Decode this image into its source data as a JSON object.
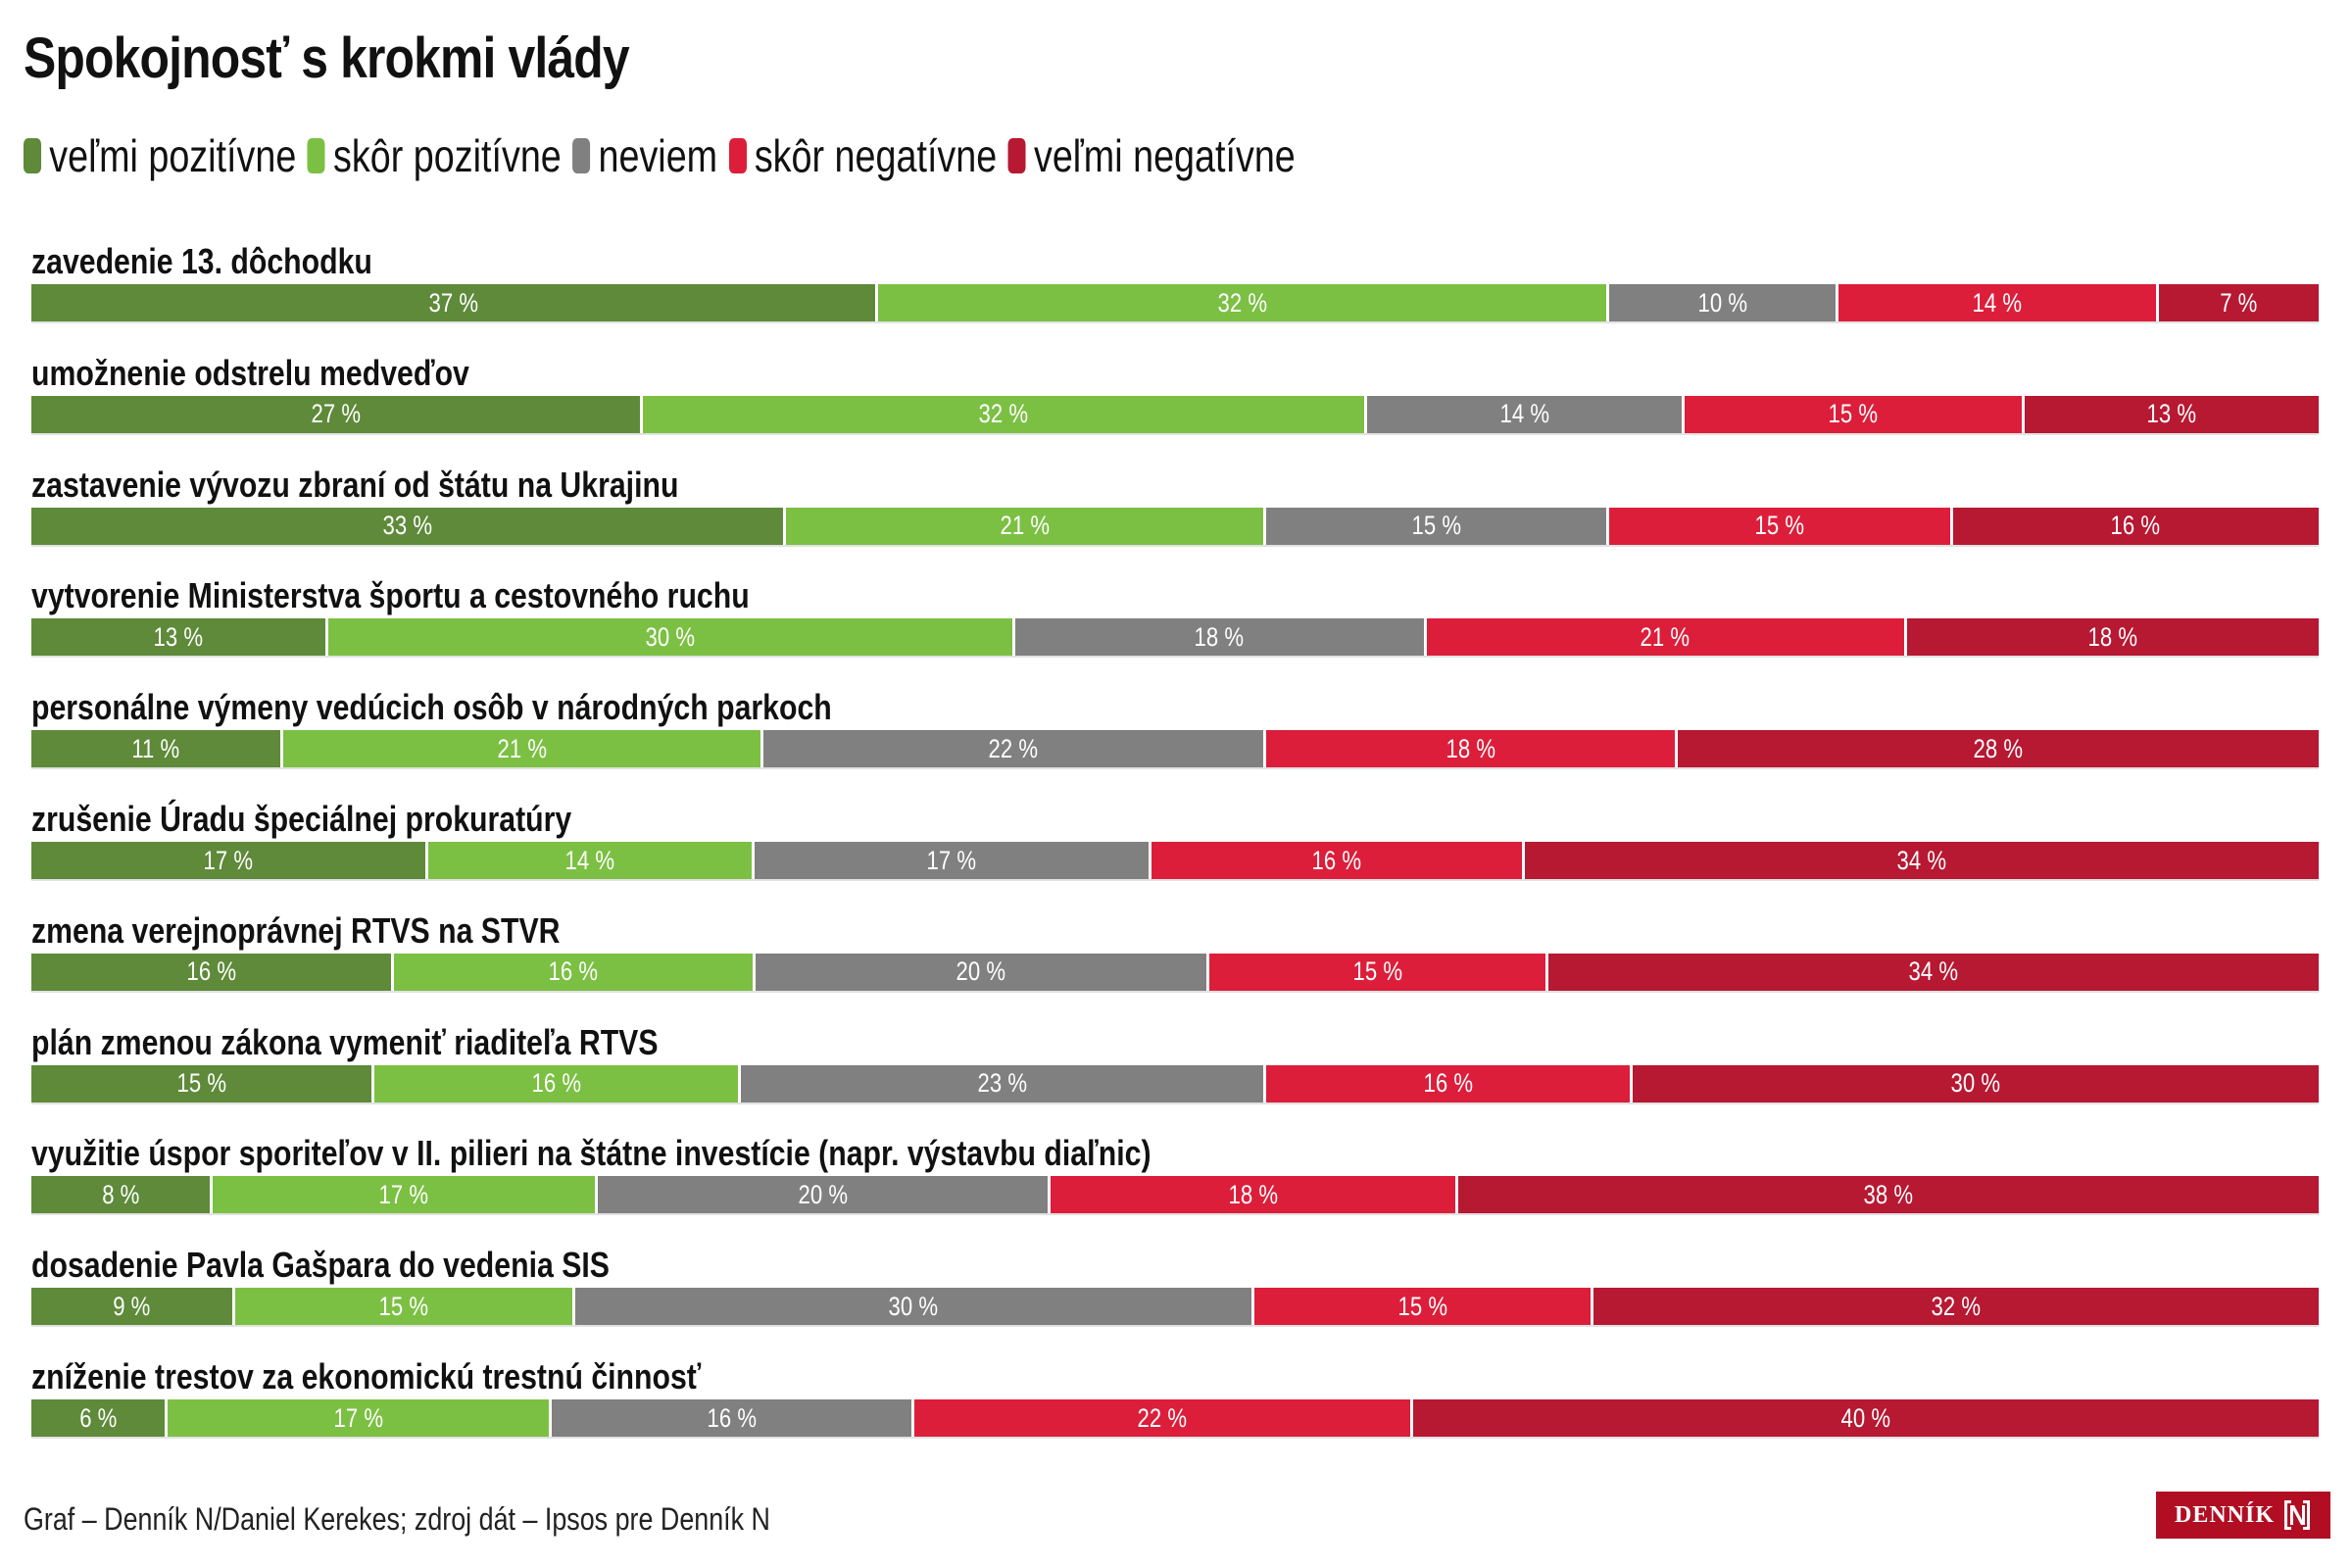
{
  "title": "Spokojnosť s krokmi vlády",
  "legend": [
    {
      "label": "veľmi pozitívne",
      "color": "#5e8a3a"
    },
    {
      "label": "skôr pozitívne",
      "color": "#7bc043"
    },
    {
      "label": "neviem",
      "color": "#808080"
    },
    {
      "label": "skôr negatívne",
      "color": "#dc1e3a"
    },
    {
      "label": "veľmi negatívne",
      "color": "#b71832"
    }
  ],
  "footer": "Graf – Denník N/Daniel Kerekes; zdroj dát – Ipsos pre Denník N",
  "logo": {
    "text": "DENNÍK",
    "icon": "n-logo-icon"
  },
  "chart_data": {
    "type": "bar",
    "orientation": "horizontal",
    "stacked": true,
    "normalized": true,
    "title": "Spokojnosť s krokmi vlády",
    "xlabel": "",
    "ylabel": "",
    "value_suffix": " %",
    "legend_position": "top-left",
    "grid": false,
    "categories": [
      "zavedenie 13. dôchodku",
      "umožnenie odstrelu medveďov",
      "zastavenie vývozu zbraní od štátu na Ukrajinu",
      "vytvorenie Ministerstva športu a cestovného ruchu",
      "personálne výmeny vedúcich osôb v národných parkoch",
      "zrušenie Úradu špeciálnej prokuratúry",
      "zmena verejnoprávnej RTVS na STVR",
      "plán zmenou zákona vymeniť riaditeľa RTVS",
      "využitie úspor sporiteľov v II. pilieri na štátne investície (napr. výstavbu diaľnic)",
      "dosadenie Pavla Gašpara do vedenia SIS",
      "zníženie trestov za ekonomickú trestnú činnosť"
    ],
    "series": [
      {
        "name": "veľmi pozitívne",
        "color": "#5e8a3a",
        "values": [
          37,
          27,
          33,
          13,
          11,
          17,
          16,
          15,
          8,
          9,
          6
        ]
      },
      {
        "name": "skôr pozitívne",
        "color": "#7bc043",
        "values": [
          32,
          32,
          21,
          30,
          21,
          14,
          16,
          16,
          17,
          15,
          17
        ]
      },
      {
        "name": "neviem",
        "color": "#808080",
        "values": [
          10,
          14,
          15,
          18,
          22,
          17,
          20,
          23,
          20,
          30,
          16
        ]
      },
      {
        "name": "skôr negatívne",
        "color": "#dc1e3a",
        "values": [
          14,
          15,
          15,
          21,
          18,
          16,
          15,
          16,
          18,
          15,
          22
        ]
      },
      {
        "name": "veľmi negatívne",
        "color": "#b71832",
        "values": [
          7,
          13,
          16,
          18,
          28,
          34,
          34,
          30,
          38,
          32,
          40
        ]
      }
    ]
  }
}
